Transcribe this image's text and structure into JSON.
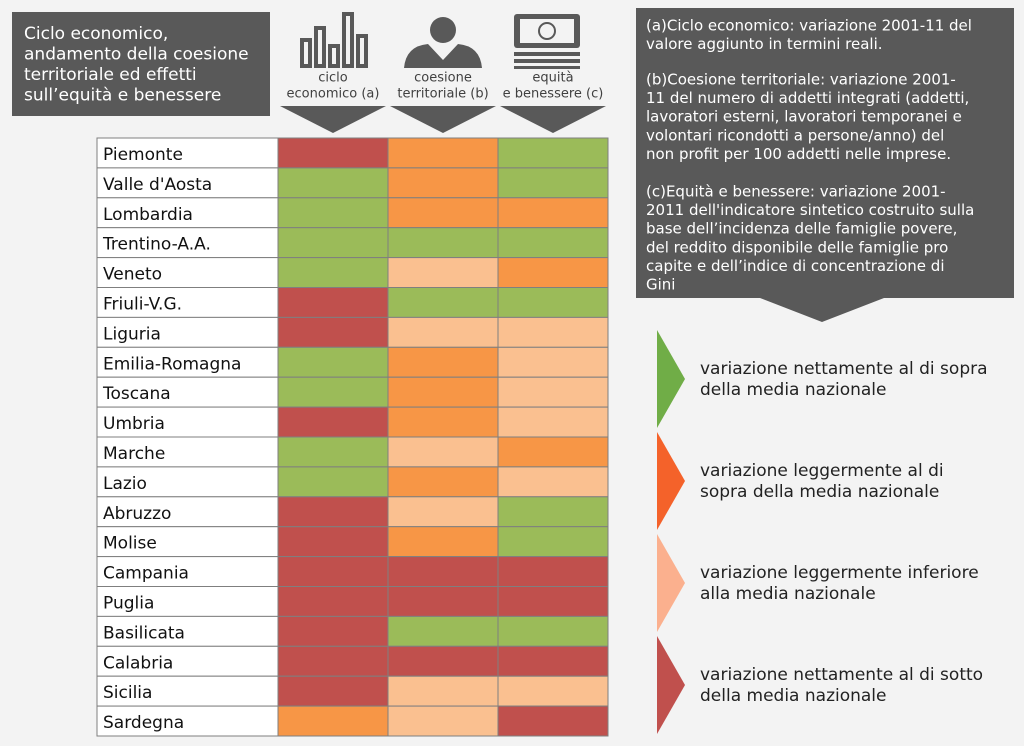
{
  "title": {
    "lines": [
      "Ciclo economico,",
      "andamento della coesione",
      "territoriale ed effetti",
      "sull’equità e benessere"
    ]
  },
  "columns": [
    {
      "lines": [
        "ciclo",
        "economico (a)"
      ]
    },
    {
      "lines": [
        "coesione",
        "territoriale (b)"
      ]
    },
    {
      "lines": [
        "equità",
        "e benessere (c)"
      ]
    }
  ],
  "table": {
    "rows": [
      {
        "region": "Piemonte",
        "colors": [
          "#c0504d",
          "#f79646",
          "#9bbb59"
        ]
      },
      {
        "region": "Valle d'Aosta",
        "colors": [
          "#9bbb59",
          "#f79646",
          "#9bbb59"
        ]
      },
      {
        "region": "Lombardia",
        "colors": [
          "#9bbb59",
          "#f79646",
          "#f79646"
        ]
      },
      {
        "region": "Trentino-A.A.",
        "colors": [
          "#9bbb59",
          "#9bbb59",
          "#9bbb59"
        ]
      },
      {
        "region": "Veneto",
        "colors": [
          "#9bbb59",
          "#fac090",
          "#f79646"
        ]
      },
      {
        "region": "Friuli-V.G.",
        "colors": [
          "#c0504d",
          "#9bbb59",
          "#9bbb59"
        ]
      },
      {
        "region": "Liguria",
        "colors": [
          "#c0504d",
          "#fac090",
          "#fac090"
        ]
      },
      {
        "region": "Emilia-Romagna",
        "colors": [
          "#9bbb59",
          "#f79646",
          "#fac090"
        ]
      },
      {
        "region": "Toscana",
        "colors": [
          "#9bbb59",
          "#f79646",
          "#fac090"
        ]
      },
      {
        "region": "Umbria",
        "colors": [
          "#c0504d",
          "#f79646",
          "#fac090"
        ]
      },
      {
        "region": "Marche",
        "colors": [
          "#9bbb59",
          "#fac090",
          "#f79646"
        ]
      },
      {
        "region": "Lazio",
        "colors": [
          "#9bbb59",
          "#f79646",
          "#fac090"
        ]
      },
      {
        "region": "Abruzzo",
        "colors": [
          "#c0504d",
          "#fac090",
          "#9bbb59"
        ]
      },
      {
        "region": "Molise",
        "colors": [
          "#c0504d",
          "#f79646",
          "#9bbb59"
        ]
      },
      {
        "region": "Campania",
        "colors": [
          "#c0504d",
          "#c0504d",
          "#c0504d"
        ]
      },
      {
        "region": "Puglia",
        "colors": [
          "#c0504d",
          "#c0504d",
          "#c0504d"
        ]
      },
      {
        "region": "Basilicata",
        "colors": [
          "#c0504d",
          "#9bbb59",
          "#9bbb59"
        ]
      },
      {
        "region": "Calabria",
        "colors": [
          "#c0504d",
          "#c0504d",
          "#c0504d"
        ]
      },
      {
        "region": "Sicilia",
        "colors": [
          "#c0504d",
          "#fac090",
          "#fac090"
        ]
      },
      {
        "region": "Sardegna",
        "colors": [
          "#f79646",
          "#fac090",
          "#c0504d"
        ]
      }
    ]
  },
  "notes": [
    {
      "lines": [
        "(a)Ciclo economico: variazione 2001-11 del",
        "valore aggiunto in termini reali."
      ]
    },
    {
      "lines": [
        "(b)Coesione territoriale: variazione 2001-",
        "11 del numero di addetti integrati (addetti,",
        "lavoratori esterni, lavoratori temporanei e",
        "volontari ricondotti a persone/anno) del",
        "non profit per 100 addetti nelle imprese."
      ]
    },
    {
      "lines": [
        "(c)Equità e benessere: variazione 2001-",
        "2011 dell'indicatore sintetico costruito sulla",
        "base dell’incidenza delle famiglie povere,",
        "del reddito disponibile delle famiglie pro",
        "capite e dell’indice di concentrazione di",
        "Gini"
      ]
    }
  ],
  "legend": [
    {
      "color": "#70ad47",
      "lines": [
        "variazione nettamente al di sopra",
        "della media nazionale"
      ]
    },
    {
      "color": "#f4622a",
      "lines": [
        "variazione leggermente al di",
        "sopra della media nazionale"
      ]
    },
    {
      "color": "#fbb08e",
      "lines": [
        "variazione leggermente inferiore",
        "alla media nazionale"
      ]
    },
    {
      "color": "#c0504d",
      "lines": [
        "variazione nettamente al di sotto",
        "della media nazionale"
      ]
    }
  ]
}
